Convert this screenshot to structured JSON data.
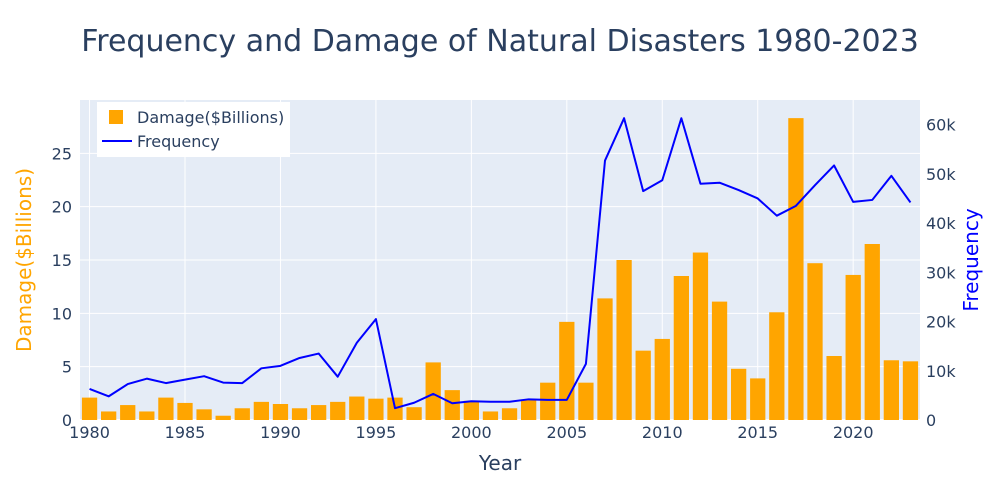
{
  "chart_data": {
    "type": "bar",
    "title": "Frequency and Damage of Natural Disasters 1980-2023",
    "xlabel": "Year",
    "x": [
      1980,
      1981,
      1982,
      1983,
      1984,
      1985,
      1986,
      1987,
      1988,
      1989,
      1990,
      1991,
      1992,
      1993,
      1994,
      1995,
      1996,
      1997,
      1998,
      1999,
      2000,
      2001,
      2002,
      2003,
      2004,
      2005,
      2006,
      2007,
      2008,
      2009,
      2010,
      2011,
      2012,
      2013,
      2014,
      2015,
      2016,
      2017,
      2018,
      2019,
      2020,
      2021,
      2022,
      2023
    ],
    "xlim": [
      1979.5,
      2023.5
    ],
    "xticks": [
      1980,
      1985,
      1990,
      1995,
      2000,
      2005,
      2010,
      2015,
      2020
    ],
    "series": [
      {
        "name": "Damage($Billions)",
        "type": "bar",
        "axis": "left",
        "color": "#FFA500",
        "values": [
          2.1,
          0.8,
          1.4,
          0.8,
          2.1,
          1.6,
          1.0,
          0.4,
          1.1,
          1.7,
          1.5,
          1.1,
          1.4,
          1.7,
          2.2,
          2.0,
          2.1,
          1.2,
          5.4,
          2.8,
          1.8,
          0.8,
          1.1,
          1.9,
          3.5,
          9.2,
          3.5,
          11.4,
          15.0,
          6.5,
          7.6,
          13.5,
          15.7,
          11.1,
          4.8,
          3.9,
          10.1,
          28.3,
          14.7,
          6.0,
          13.6,
          16.5,
          5.6,
          5.5
        ]
      },
      {
        "name": "Frequency",
        "type": "line",
        "axis": "right",
        "color": "#0000FF",
        "values": [
          6300,
          4800,
          7300,
          8400,
          7500,
          8200,
          8900,
          7600,
          7500,
          10500,
          11000,
          12600,
          13500,
          8800,
          15700,
          20500,
          2400,
          3500,
          5300,
          3400,
          3800,
          3700,
          3700,
          4200,
          4100,
          4100,
          11400,
          52700,
          61300,
          46500,
          48700,
          61300,
          48000,
          48200,
          46700,
          45000,
          41500,
          43500,
          47700,
          51700,
          44300,
          44700,
          49600,
          44200
        ]
      }
    ],
    "y_left": {
      "label": "Damage($Billions)",
      "color": "#FFA500",
      "range": [
        0,
        30
      ],
      "ticks": [
        0,
        5,
        10,
        15,
        20,
        25
      ]
    },
    "y_right": {
      "label": "Frequency",
      "color": "#0000FF",
      "range": [
        0,
        65000
      ],
      "ticks": [
        0,
        10000,
        20000,
        30000,
        40000,
        50000,
        60000
      ],
      "tick_labels": [
        "0",
        "10k",
        "20k",
        "30k",
        "40k",
        "50k",
        "60k"
      ]
    },
    "grid": true,
    "legend_position": "top-left",
    "plot_bg": "#E5ECF6"
  }
}
